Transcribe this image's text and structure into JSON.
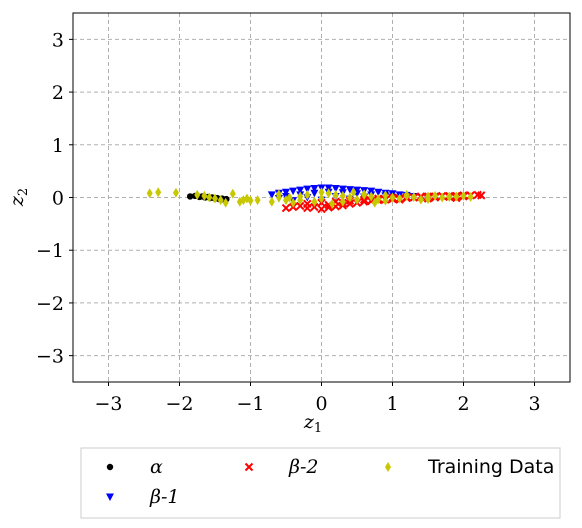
{
  "chart_data": {
    "type": "scatter",
    "xlabel": "z",
    "xlabel_sub": "1",
    "ylabel": "z",
    "ylabel_sub": "2",
    "xlim": [
      -3.5,
      3.5
    ],
    "ylim": [
      -3.5,
      3.5
    ],
    "xticks": [
      -3,
      -2,
      -1,
      0,
      1,
      2,
      3
    ],
    "yticks": [
      -3,
      -2,
      -1,
      0,
      1,
      2,
      3
    ],
    "xtick_labels": [
      "−3",
      "−2",
      "−1",
      "0",
      "1",
      "2",
      "3"
    ],
    "ytick_labels": [
      "−3",
      "−2",
      "−1",
      "0",
      "1",
      "2",
      "3"
    ],
    "grid": true,
    "legend_position": "below",
    "series": [
      {
        "name": "α",
        "marker": "circle",
        "color": "#000000",
        "x": [
          -1.85,
          -1.78,
          -1.72,
          -1.68,
          -1.64,
          -1.6,
          -1.57,
          -1.54,
          -1.5,
          -1.47,
          -1.44,
          -1.4,
          -1.37,
          -1.34
        ],
        "y": [
          0.02,
          0.03,
          0.01,
          0.02,
          0.0,
          0.01,
          -0.01,
          0.0,
          -0.02,
          -0.01,
          -0.03,
          -0.02,
          -0.04,
          -0.03
        ]
      },
      {
        "name": "β-1",
        "marker": "triangle-down",
        "color": "#0000ff",
        "x": [
          -0.7,
          -0.6,
          -0.5,
          -0.4,
          -0.3,
          -0.2,
          -0.1,
          0.0,
          0.1,
          0.2,
          0.3,
          0.4,
          0.5,
          0.6,
          0.7,
          0.8,
          0.9,
          1.0,
          1.1,
          1.2,
          -0.5,
          -0.3,
          -0.1,
          0.1,
          0.3,
          0.5,
          0.7,
          0.9,
          -0.6,
          -0.2,
          0.2,
          0.6,
          1.0,
          1.3,
          1.5,
          0.0,
          0.4,
          -0.4
        ],
        "y": [
          0.05,
          0.08,
          0.1,
          0.12,
          0.14,
          0.16,
          0.17,
          0.18,
          0.18,
          0.17,
          0.16,
          0.15,
          0.14,
          0.13,
          0.12,
          0.1,
          0.08,
          0.07,
          0.05,
          0.04,
          0.02,
          0.05,
          0.08,
          0.1,
          0.09,
          0.07,
          0.05,
          0.03,
          -0.02,
          0.0,
          0.02,
          0.01,
          0.0,
          0.02,
          0.01,
          -0.05,
          -0.03,
          -0.06
        ]
      },
      {
        "name": "β-2",
        "marker": "x",
        "color": "#ff0000",
        "x": [
          -0.5,
          -0.4,
          -0.3,
          -0.2,
          -0.1,
          0.0,
          0.1,
          0.2,
          0.3,
          0.4,
          0.5,
          0.6,
          0.7,
          0.8,
          0.9,
          1.0,
          1.1,
          1.2,
          1.3,
          1.4,
          1.5,
          1.6,
          1.7,
          1.8,
          1.9,
          2.0,
          2.1,
          2.2,
          2.25,
          0.0,
          0.2,
          0.4,
          0.6,
          0.8,
          1.0,
          1.2,
          1.4,
          1.6,
          1.8,
          2.0,
          -0.2,
          0.1,
          0.3,
          0.7,
          1.1,
          1.5,
          1.9
        ],
        "y": [
          -0.2,
          -0.18,
          -0.16,
          -0.2,
          -0.18,
          -0.22,
          -0.19,
          -0.17,
          -0.15,
          -0.12,
          -0.1,
          -0.08,
          -0.06,
          -0.05,
          -0.04,
          -0.03,
          -0.02,
          -0.01,
          0.0,
          0.01,
          0.02,
          0.02,
          0.03,
          0.03,
          0.03,
          0.04,
          0.04,
          0.05,
          0.04,
          -0.1,
          -0.08,
          -0.06,
          -0.04,
          -0.02,
          0.0,
          0.01,
          0.02,
          0.0,
          0.01,
          0.02,
          -0.12,
          -0.14,
          -0.1,
          -0.07,
          -0.04,
          -0.02,
          -0.01
        ]
      },
      {
        "name": "Training Data",
        "marker": "diamond",
        "color": "#c8c800",
        "x": [
          -2.42,
          -2.3,
          -2.05,
          -1.75,
          -1.65,
          -1.58,
          -1.5,
          -1.42,
          -1.35,
          -1.25,
          -1.15,
          -1.1,
          -1.05,
          -1.0,
          -0.9,
          -0.7,
          -0.6,
          -0.5,
          -0.4,
          -0.3,
          -0.2,
          -0.1,
          0.0,
          0.1,
          0.2,
          0.3,
          0.4,
          0.5,
          0.6,
          0.7,
          0.8,
          0.9,
          1.0,
          1.1,
          1.2,
          1.3,
          1.4,
          1.5,
          1.6,
          1.7,
          1.8,
          1.9,
          2.0,
          2.1,
          -0.6,
          -0.3,
          0.0,
          0.3,
          0.6,
          0.9,
          1.2,
          1.5,
          1.8,
          -0.45,
          0.15,
          0.45,
          0.75
        ],
        "y": [
          0.08,
          0.1,
          0.09,
          0.05,
          0.03,
          0.0,
          -0.02,
          -0.05,
          -0.1,
          0.07,
          -0.08,
          -0.05,
          -0.02,
          -0.06,
          -0.05,
          -0.08,
          0.0,
          -0.05,
          -0.1,
          0.02,
          0.05,
          -0.08,
          -0.02,
          0.08,
          0.05,
          0.03,
          0.0,
          -0.04,
          0.05,
          0.02,
          -0.03,
          0.04,
          0.0,
          -0.02,
          0.03,
          0.01,
          -0.04,
          0.02,
          0.03,
          0.0,
          0.01,
          0.02,
          0.03,
          0.01,
          0.06,
          -0.05,
          0.1,
          -0.08,
          0.06,
          -0.06,
          0.05,
          -0.03,
          0.02,
          0.0,
          -0.12,
          0.1,
          -0.1
        ]
      }
    ]
  }
}
